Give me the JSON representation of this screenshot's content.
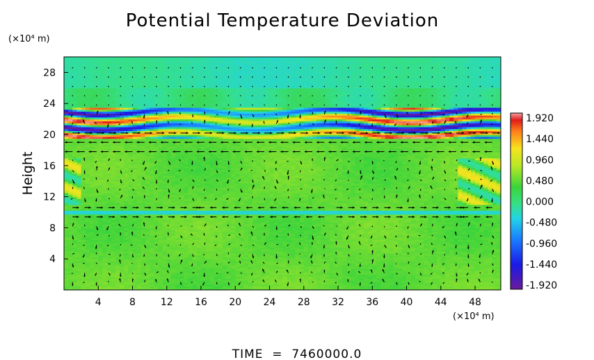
{
  "chart_data": {
    "type": "heatmap",
    "title": "Potential Temperature Deviation",
    "ylabel": "Height",
    "xunit_label": "(×10⁴ m)",
    "yunit_label": "(×10⁴ m)",
    "x_ticks": [
      "4",
      "8",
      "12",
      "16",
      "20",
      "24",
      "28",
      "32",
      "36",
      "40",
      "44",
      "48"
    ],
    "y_ticks": [
      "4",
      "8",
      "12",
      "16",
      "20",
      "24",
      "28"
    ],
    "xlim": [
      0,
      51
    ],
    "ylim": [
      0,
      30
    ],
    "colorbar": {
      "labels": [
        "1.920",
        "1.440",
        "0.960",
        "0.480",
        "0.000",
        "-0.480",
        "-0.960",
        "-1.440",
        "-1.920"
      ],
      "range": [
        -1.92,
        1.92
      ]
    },
    "fields": {
      "background_level": 0.3,
      "stratospheric_band": {
        "y_range": [
          19.5,
          23.5
        ],
        "amplitude": 1.9
      },
      "tropopause_line": {
        "y": 10,
        "level": -0.4
      },
      "vectors": "wind field overlay"
    },
    "time_label": "TIME  =  7460000.0"
  }
}
